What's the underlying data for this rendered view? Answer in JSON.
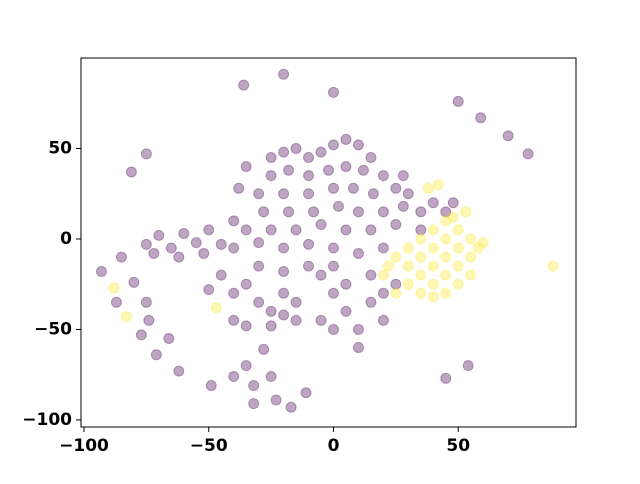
{
  "chart_data": {
    "type": "scatter",
    "xlim": [
      -101.2,
      97.2
    ],
    "ylim": [
      -103.9,
      100
    ],
    "xticks": [
      {
        "value": -100,
        "label": "−100"
      },
      {
        "value": -50,
        "label": "−50"
      },
      0,
      50
    ],
    "yticks": [
      {
        "value": -100,
        "label": "−100"
      },
      {
        "value": -50,
        "label": "−50"
      },
      0,
      50
    ],
    "series": [
      {
        "color": "#440154",
        "x": [
          -20,
          -36,
          0,
          50,
          59,
          70,
          78,
          -75,
          -81,
          -85,
          -93,
          -80,
          -87,
          -75,
          -74,
          -77,
          -71,
          -66,
          -62,
          -49,
          -40,
          -35,
          -32,
          -32,
          -23,
          -17,
          -25,
          -28,
          -11,
          45,
          54,
          -25,
          -20,
          -15,
          -10,
          -5,
          0,
          5,
          10,
          15,
          -25,
          -18,
          -10,
          -2,
          5,
          12,
          20,
          -35,
          -38,
          -30,
          -20,
          -10,
          0,
          8,
          16,
          25,
          -28,
          -18,
          -8,
          2,
          10,
          20,
          28,
          -40,
          -35,
          -25,
          -15,
          -5,
          5,
          15,
          25,
          35,
          -75,
          -70,
          -65,
          -60,
          -55,
          -50,
          -72,
          -62,
          -52,
          -45,
          -40,
          -30,
          -20,
          -10,
          0,
          10,
          20,
          -50,
          -45,
          -40,
          -35,
          -30,
          -25,
          -20,
          -15,
          -40,
          -35,
          -25,
          -15,
          -5,
          0,
          5,
          10,
          0,
          -5,
          15,
          20,
          -10,
          0,
          -30,
          -20,
          5,
          15,
          10,
          -20,
          30,
          35,
          40,
          45,
          48,
          28,
          25,
          20
        ],
        "values": [
          91,
          85,
          81,
          76,
          67,
          57,
          47,
          47,
          37,
          -10,
          -18,
          -24,
          -35,
          -35,
          -45,
          -53,
          -64,
          -55,
          -73,
          -81,
          -76,
          -70,
          -81,
          -91,
          -89,
          -93,
          -76,
          -61,
          -85,
          -77,
          -70,
          45,
          48,
          50,
          45,
          48,
          52,
          55,
          52,
          45,
          35,
          38,
          35,
          38,
          40,
          38,
          35,
          40,
          28,
          25,
          25,
          25,
          28,
          28,
          25,
          28,
          15,
          15,
          15,
          18,
          15,
          15,
          18,
          10,
          5,
          5,
          5,
          8,
          5,
          5,
          8,
          5,
          -3,
          2,
          -5,
          3,
          -2,
          5,
          -8,
          -10,
          -8,
          -3,
          -5,
          -2,
          -5,
          -3,
          -5,
          -8,
          -5,
          -28,
          -20,
          -30,
          -25,
          -35,
          -40,
          -30,
          -35,
          -45,
          -48,
          -48,
          -45,
          -20,
          -30,
          -40,
          -50,
          -50,
          -45,
          -35,
          -45,
          -15,
          -15,
          -15,
          -18,
          -25,
          -20,
          -60,
          -42,
          25,
          15,
          20,
          15,
          20,
          35,
          -25,
          -30
        ]
      },
      {
        "color": "#fde725",
        "x": [
          88,
          -88,
          -83,
          -47,
          25,
          30,
          35,
          40,
          45,
          50,
          55,
          58,
          30,
          35,
          40,
          45,
          50,
          55,
          30,
          35,
          40,
          45,
          50,
          55,
          35,
          40,
          45,
          50,
          45,
          40,
          20,
          25,
          42,
          38,
          48,
          53,
          22,
          60
        ],
        "values": [
          -15,
          -27,
          -43,
          -38,
          -10,
          -5,
          0,
          5,
          10,
          5,
          0,
          -5,
          -15,
          -10,
          -5,
          0,
          -5,
          -10,
          -25,
          -20,
          -15,
          -10,
          -15,
          -20,
          -30,
          -25,
          -20,
          -25,
          -30,
          -32,
          -20,
          -30,
          30,
          28,
          12,
          15,
          -15,
          -2
        ]
      }
    ]
  }
}
